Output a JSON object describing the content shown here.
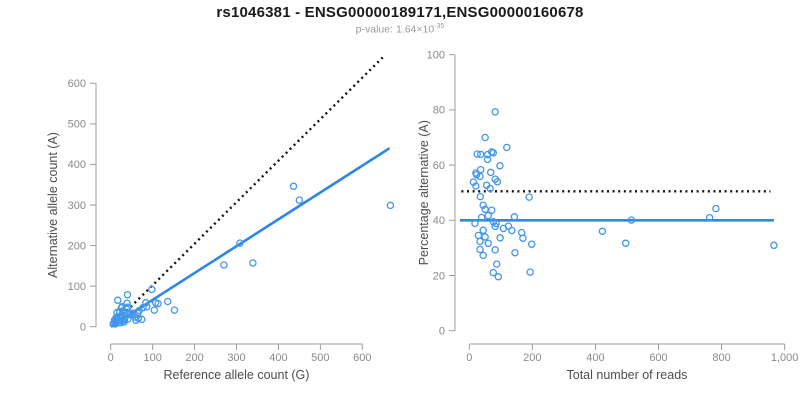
{
  "title": "rs1046381 - ENSG00000189171,ENSG00000160678",
  "subtitle": {
    "prefix": "p-value: 1.64×10",
    "exponent": "-35"
  },
  "colors": {
    "point_stroke": "#4396EC",
    "fit_line": "#2E86E8",
    "dotted_line": "#111111",
    "axis_line": "#9E9E9E",
    "tick_label": "#8A8A8A",
    "axis_title": "#4D4D4D",
    "title_text": "#1A1A1A",
    "subtitle_text": "#9A9A9A"
  },
  "chart_data": {
    "type": "scatter",
    "note": "Each shared point = [reference_allele_count_G, alternative_allele_count_A]. Left panel plots (G, A); right panel derives (G+A, 100*A/(G+A)).",
    "shared_points_g_a": [
      [
        436,
        346
      ],
      [
        450,
        312
      ],
      [
        667,
        299
      ],
      [
        308,
        206
      ],
      [
        339,
        157
      ],
      [
        270,
        152
      ],
      [
        98,
        92
      ],
      [
        136,
        62
      ],
      [
        152,
        41
      ],
      [
        107,
        59
      ],
      [
        113,
        57
      ],
      [
        104,
        41
      ],
      [
        84,
        59
      ],
      [
        86,
        49
      ],
      [
        77,
        47
      ],
      [
        68,
        40
      ],
      [
        65,
        33
      ],
      [
        66,
        21
      ],
      [
        74,
        18
      ],
      [
        60,
        16
      ],
      [
        58,
        24
      ],
      [
        51,
        31
      ],
      [
        52,
        33
      ],
      [
        46,
        30
      ],
      [
        41,
        48
      ],
      [
        41,
        19
      ],
      [
        40,
        79
      ],
      [
        40,
        31
      ],
      [
        39,
        58
      ],
      [
        37,
        45
      ],
      [
        35,
        25
      ],
      [
        33,
        17
      ],
      [
        32,
        34
      ],
      [
        32,
        12
      ],
      [
        29,
        39
      ],
      [
        28,
        22
      ],
      [
        28,
        16
      ],
      [
        27,
        49
      ],
      [
        26,
        29
      ],
      [
        25,
        46
      ],
      [
        24,
        20
      ],
      [
        24,
        10
      ],
      [
        23,
        16
      ],
      [
        23,
        11
      ],
      [
        22,
        36
      ],
      [
        21,
        37
      ],
      [
        19,
        10
      ],
      [
        18,
        17
      ],
      [
        17,
        65
      ],
      [
        15,
        35
      ],
      [
        15,
        21
      ],
      [
        15,
        19
      ],
      [
        13,
        23
      ],
      [
        11,
        7
      ],
      [
        10,
        13
      ],
      [
        10,
        11
      ],
      [
        9,
        16
      ],
      [
        9,
        12
      ],
      [
        6,
        7
      ]
    ],
    "panels": [
      {
        "panel": "left",
        "xlabel": "Reference allele count (G)",
        "ylabel": "Alternative allele count (A)",
        "xticks": [
          0,
          100,
          200,
          300,
          400,
          500,
          600
        ],
        "xtick_labels": [
          "0",
          "100",
          "200",
          "300",
          "400",
          "500",
          "600"
        ],
        "yticks": [
          0,
          100,
          200,
          300,
          400,
          500,
          600
        ],
        "ytick_labels": [
          "0",
          "100",
          "200",
          "300",
          "400",
          "500",
          "600"
        ],
        "xlim": [
          0,
          670
        ],
        "ylim": [
          0,
          670
        ],
        "grid": false,
        "lines": [
          {
            "name": "identity-line",
            "style": "dotted",
            "x": [
              0,
              650
            ],
            "y": [
              0,
              665
            ]
          },
          {
            "name": "regression-line",
            "style": "solid",
            "x": [
              0,
              665
            ],
            "y": [
              0,
              440
            ]
          }
        ]
      },
      {
        "panel": "right",
        "xlabel": "Total number of reads",
        "ylabel": "Percentage alternative (A)",
        "xticks": [
          0,
          200,
          400,
          600,
          800,
          1000
        ],
        "xtick_labels": [
          "0",
          "200",
          "400",
          "600",
          "800",
          "1,000"
        ],
        "yticks": [
          0,
          20,
          40,
          60,
          80,
          100
        ],
        "ytick_labels": [
          "0",
          "20",
          "40",
          "60",
          "80",
          "100"
        ],
        "xlim": [
          -30,
          1000
        ],
        "ylim": [
          0,
          100
        ],
        "grid": false,
        "lines": [
          {
            "name": "expected-50pct-line",
            "style": "dotted",
            "x": [
              -25,
              955
            ],
            "y": [
              50.5,
              50.5
            ]
          },
          {
            "name": "fitted-40pct-line",
            "style": "solid",
            "x": [
              -30,
              966
            ],
            "y": [
              40,
              40
            ]
          }
        ]
      }
    ]
  }
}
